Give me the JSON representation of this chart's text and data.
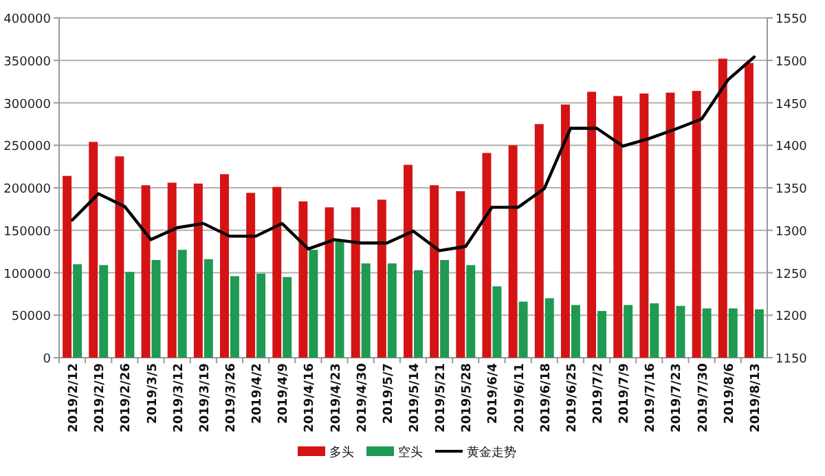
{
  "chart_data": {
    "type": "bar",
    "categories": [
      "2019/2/12",
      "2019/2/19",
      "2019/2/26",
      "2019/3/5",
      "2019/3/12",
      "2019/3/19",
      "2019/3/26",
      "2019/4/2",
      "2019/4/9",
      "2019/4/16",
      "2019/4/23",
      "2019/4/30",
      "2019/5/7",
      "2019/5/14",
      "2019/5/21",
      "2019/5/28",
      "2019/6/4",
      "2019/6/11",
      "2019/6/18",
      "2019/6/25",
      "2019/7/2",
      "2019/7/9",
      "2019/7/16",
      "2019/7/23",
      "2019/7/30",
      "2019/8/6",
      "2019/8/13"
    ],
    "series": [
      {
        "name": "多头",
        "color": "#d41414",
        "values": [
          214000,
          254000,
          237000,
          203000,
          206000,
          205000,
          216000,
          194000,
          201000,
          184000,
          177000,
          177000,
          186000,
          227000,
          203000,
          196000,
          241000,
          250000,
          275000,
          298000,
          313000,
          308000,
          311000,
          312000,
          314000,
          352000,
          347000
        ]
      },
      {
        "name": "空头",
        "color": "#1f9a52",
        "values": [
          110000,
          109000,
          101000,
          115000,
          127000,
          116000,
          96000,
          99000,
          95000,
          127000,
          139000,
          111000,
          111000,
          103000,
          115000,
          109000,
          84000,
          66000,
          70000,
          62000,
          55000,
          62000,
          64000,
          61000,
          58000,
          58000,
          57000
        ]
      },
      {
        "name": "黄金走势",
        "type": "line",
        "axis": "y2",
        "color": "#000000",
        "values": [
          1312,
          1343,
          1328,
          1289,
          1303,
          1308,
          1293,
          1293,
          1308,
          1278,
          1289,
          1285,
          1285,
          1299,
          1276,
          1281,
          1327,
          1327,
          1349,
          1420,
          1420,
          1399,
          1408,
          1419,
          1431,
          1477,
          1504
        ]
      }
    ],
    "ylim": [
      0,
      400000
    ],
    "yticks": [
      0,
      50000,
      100000,
      150000,
      200000,
      250000,
      300000,
      350000,
      400000
    ],
    "y2lim": [
      1150,
      1550
    ],
    "y2ticks": [
      1150,
      1200,
      1250,
      1300,
      1350,
      1400,
      1450,
      1500,
      1550
    ],
    "grid": "y",
    "legend": "bottom"
  }
}
